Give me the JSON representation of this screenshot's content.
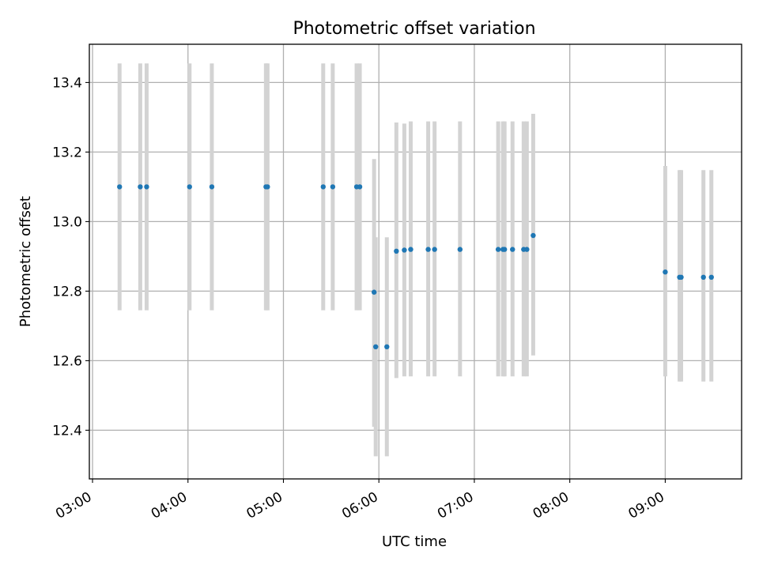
{
  "chart_data": {
    "type": "scatter",
    "title": "Photometric offset variation",
    "xlabel": "UTC time",
    "ylabel": "Photometric offset",
    "x_ticks": [
      "03:00",
      "04:00",
      "05:00",
      "06:00",
      "07:00",
      "08:00",
      "09:00"
    ],
    "y_ticks": [
      "12.4",
      "12.6",
      "12.8",
      "13.0",
      "13.2",
      "13.4"
    ],
    "xlim": [
      "02:58",
      "09:48"
    ],
    "ylim": [
      12.26,
      13.51
    ],
    "grid": true,
    "marker_color": "#1f77b4",
    "errorbar_color": "#d3d3d3",
    "points": [
      {
        "t": "03:17",
        "y": 13.1,
        "lo": 12.745,
        "hi": 13.455
      },
      {
        "t": "03:30",
        "y": 13.1,
        "lo": 12.745,
        "hi": 13.455
      },
      {
        "t": "03:34",
        "y": 13.1,
        "lo": 12.745,
        "hi": 13.455
      },
      {
        "t": "04:01",
        "y": 13.1,
        "lo": 12.745,
        "hi": 13.455
      },
      {
        "t": "04:15",
        "y": 13.1,
        "lo": 12.745,
        "hi": 13.455
      },
      {
        "t": "04:49",
        "y": 13.1,
        "lo": 12.745,
        "hi": 13.455
      },
      {
        "t": "04:50",
        "y": 13.1,
        "lo": 12.745,
        "hi": 13.455
      },
      {
        "t": "05:25",
        "y": 13.1,
        "lo": 12.745,
        "hi": 13.455
      },
      {
        "t": "05:31",
        "y": 13.1,
        "lo": 12.745,
        "hi": 13.455
      },
      {
        "t": "05:46",
        "y": 13.1,
        "lo": 12.745,
        "hi": 13.455
      },
      {
        "t": "05:48",
        "y": 13.1,
        "lo": 12.745,
        "hi": 13.455
      },
      {
        "t": "05:57",
        "y": 12.797,
        "lo": 12.41,
        "hi": 13.18
      },
      {
        "t": "05:58",
        "y": 12.64,
        "lo": 12.325,
        "hi": 12.955
      },
      {
        "t": "06:05",
        "y": 12.64,
        "lo": 12.325,
        "hi": 12.955
      },
      {
        "t": "06:11",
        "y": 12.915,
        "lo": 12.55,
        "hi": 13.285
      },
      {
        "t": "06:16",
        "y": 12.918,
        "lo": 12.555,
        "hi": 13.282
      },
      {
        "t": "06:20",
        "y": 12.92,
        "lo": 12.555,
        "hi": 13.288
      },
      {
        "t": "06:31",
        "y": 12.92,
        "lo": 12.555,
        "hi": 13.288
      },
      {
        "t": "06:35",
        "y": 12.92,
        "lo": 12.555,
        "hi": 13.288
      },
      {
        "t": "06:51",
        "y": 12.92,
        "lo": 12.555,
        "hi": 13.288
      },
      {
        "t": "07:15",
        "y": 12.92,
        "lo": 12.555,
        "hi": 13.288
      },
      {
        "t": "07:18",
        "y": 12.92,
        "lo": 12.555,
        "hi": 13.288
      },
      {
        "t": "07:19",
        "y": 12.92,
        "lo": 12.555,
        "hi": 13.288
      },
      {
        "t": "07:24",
        "y": 12.92,
        "lo": 12.555,
        "hi": 13.288
      },
      {
        "t": "07:31",
        "y": 12.92,
        "lo": 12.555,
        "hi": 13.288
      },
      {
        "t": "07:33",
        "y": 12.92,
        "lo": 12.555,
        "hi": 13.288
      },
      {
        "t": "07:37",
        "y": 12.96,
        "lo": 12.615,
        "hi": 13.31
      },
      {
        "t": "09:00",
        "y": 12.855,
        "lo": 12.555,
        "hi": 13.16
      },
      {
        "t": "09:09",
        "y": 12.84,
        "lo": 12.54,
        "hi": 13.148
      },
      {
        "t": "09:10",
        "y": 12.84,
        "lo": 12.54,
        "hi": 13.148
      },
      {
        "t": "09:24",
        "y": 12.84,
        "lo": 12.54,
        "hi": 13.148
      },
      {
        "t": "09:29",
        "y": 12.84,
        "lo": 12.54,
        "hi": 13.148
      }
    ]
  }
}
